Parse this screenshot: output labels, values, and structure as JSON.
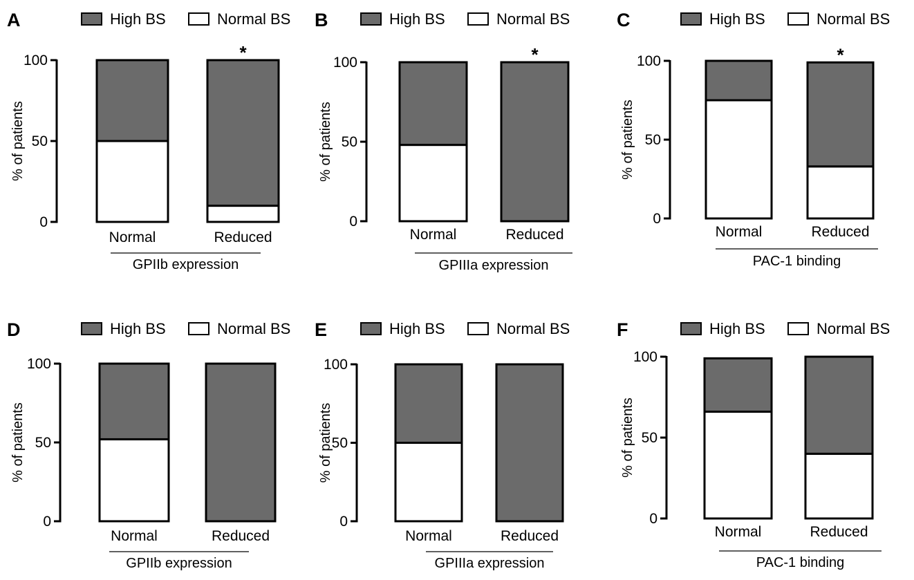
{
  "legend": {
    "high_label": "High BS",
    "normal_label": "Normal BS"
  },
  "colors": {
    "high": "#6b6b6b",
    "normal": "#ffffff",
    "stroke": "#000000"
  },
  "chart_data": [
    {
      "panel": "A",
      "type": "bar",
      "stacked": true,
      "categories": [
        "Normal",
        "Reduced"
      ],
      "series": [
        {
          "name": "High BS",
          "values": [
            50,
            90
          ]
        },
        {
          "name": "Normal BS",
          "values": [
            50,
            10
          ]
        }
      ],
      "xlabel": "GPIIb expression",
      "ylabel": "% of patients",
      "ylim": [
        0,
        100
      ],
      "yticks": [
        "0",
        "50",
        "100"
      ],
      "annotations": [
        "",
        "*"
      ],
      "legend_position": "top"
    },
    {
      "panel": "B",
      "type": "bar",
      "stacked": true,
      "categories": [
        "Normal",
        "Reduced"
      ],
      "series": [
        {
          "name": "High BS",
          "values": [
            52,
            100
          ]
        },
        {
          "name": "Normal BS",
          "values": [
            48,
            0
          ]
        }
      ],
      "xlabel": "GPIIIa expression",
      "ylabel": "% of patients",
      "ylim": [
        0,
        100
      ],
      "yticks": [
        "0",
        "50",
        "100"
      ],
      "annotations": [
        "",
        "*"
      ],
      "legend_position": "top"
    },
    {
      "panel": "C",
      "type": "bar",
      "stacked": true,
      "categories": [
        "Normal",
        "Reduced"
      ],
      "series": [
        {
          "name": "High BS",
          "values": [
            25,
            66
          ]
        },
        {
          "name": "Normal BS",
          "values": [
            75,
            33
          ]
        }
      ],
      "xlabel": "PAC-1 binding",
      "ylabel": "% of patients",
      "ylim": [
        0,
        100
      ],
      "yticks": [
        "0",
        "50",
        "100"
      ],
      "annotations": [
        "",
        "*"
      ],
      "legend_position": "top"
    },
    {
      "panel": "D",
      "type": "bar",
      "stacked": true,
      "categories": [
        "Normal",
        "Reduced"
      ],
      "series": [
        {
          "name": "High BS",
          "values": [
            48,
            100
          ]
        },
        {
          "name": "Normal BS",
          "values": [
            52,
            0
          ]
        }
      ],
      "xlabel": "GPIIb expression",
      "ylabel": "% of patients",
      "ylim": [
        0,
        100
      ],
      "yticks": [
        "0",
        "50",
        "100"
      ],
      "annotations": [
        "",
        ""
      ],
      "legend_position": "top"
    },
    {
      "panel": "E",
      "type": "bar",
      "stacked": true,
      "categories": [
        "Normal",
        "Reduced"
      ],
      "series": [
        {
          "name": "High BS",
          "values": [
            50,
            100
          ]
        },
        {
          "name": "Normal BS",
          "values": [
            50,
            0
          ]
        }
      ],
      "xlabel": "GPIIIa expression",
      "ylabel": "% of patients",
      "ylim": [
        0,
        100
      ],
      "yticks": [
        "0",
        "50",
        "100"
      ],
      "annotations": [
        "",
        ""
      ],
      "legend_position": "top"
    },
    {
      "panel": "F",
      "type": "bar",
      "stacked": true,
      "categories": [
        "Normal",
        "Reduced"
      ],
      "series": [
        {
          "name": "High BS",
          "values": [
            33,
            60
          ]
        },
        {
          "name": "Normal BS",
          "values": [
            66,
            40
          ]
        }
      ],
      "xlabel": "PAC-1 binding",
      "ylabel": "% of patients",
      "ylim": [
        0,
        100
      ],
      "yticks": [
        "0",
        "50",
        "100"
      ],
      "annotations": [
        "",
        ""
      ],
      "legend_position": "top"
    }
  ]
}
